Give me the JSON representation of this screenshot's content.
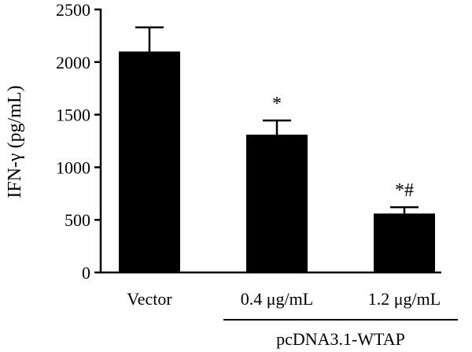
{
  "chart_data": {
    "type": "bar",
    "ylabel": "IFN-γ (pg/mL)",
    "ylim": [
      0,
      2500
    ],
    "yticks": [
      0,
      500,
      1000,
      1500,
      2000,
      2500
    ],
    "categories": [
      "Vector",
      "0.4 μg/mL",
      "1.2 μg/mL"
    ],
    "values": [
      2100,
      1310,
      560
    ],
    "errors": [
      230,
      135,
      60
    ],
    "annotations": [
      "",
      "*",
      "*#"
    ],
    "group_label": "pcDNA3.1-WTAP",
    "group_covers": [
      "0.4 μg/mL",
      "1.2 μg/mL"
    ],
    "bar_color": "#000000",
    "grid": false,
    "legend": "none"
  }
}
